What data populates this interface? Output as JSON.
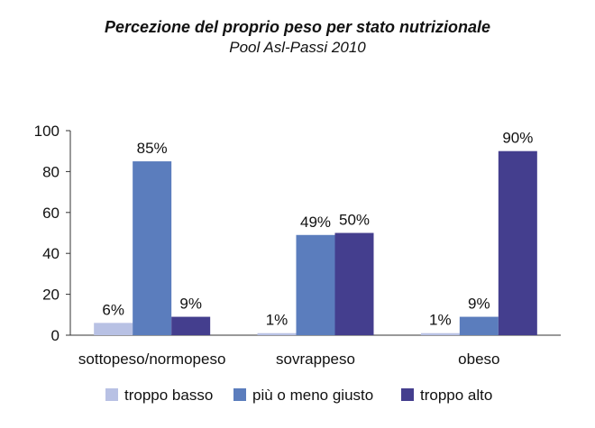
{
  "chart_data": {
    "type": "bar",
    "title": "Percezione del proprio peso per stato nutrizionale",
    "subtitle": "Pool Asl-Passi 2010",
    "categories": [
      "sottopeso/normopeso",
      "sovrappeso",
      "obeso"
    ],
    "series": [
      {
        "name": "troppo basso",
        "values": [
          6,
          1,
          1
        ],
        "labels": [
          "6%",
          "1%",
          "1%"
        ],
        "color": "#b8c1e4"
      },
      {
        "name": "più o meno giusto",
        "values": [
          85,
          49,
          9
        ],
        "labels": [
          "85%",
          "49%",
          "9%"
        ],
        "color": "#5b7dbd"
      },
      {
        "name": "troppo alto",
        "values": [
          9,
          50,
          90
        ],
        "labels": [
          "9%",
          "50%",
          "90%"
        ],
        "color": "#443e8e"
      }
    ],
    "yticks": [
      "0",
      "20",
      "40",
      "60",
      "80",
      "100"
    ],
    "ylim": [
      0,
      100
    ],
    "grid": false,
    "legend": "bottom"
  }
}
